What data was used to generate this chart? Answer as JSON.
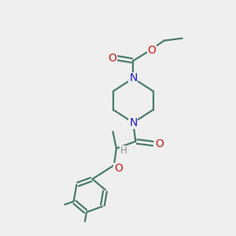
{
  "background_color": "#efefef",
  "bond_color": "#4a7c6a",
  "N_color": "#1a1acc",
  "O_color": "#cc1a1a",
  "H_color": "#888888",
  "line_width": 1.6,
  "font_size": 10,
  "figsize": [
    3.0,
    3.0
  ],
  "dpi": 100,
  "xlim": [
    0,
    10
  ],
  "ylim": [
    0,
    10
  ]
}
